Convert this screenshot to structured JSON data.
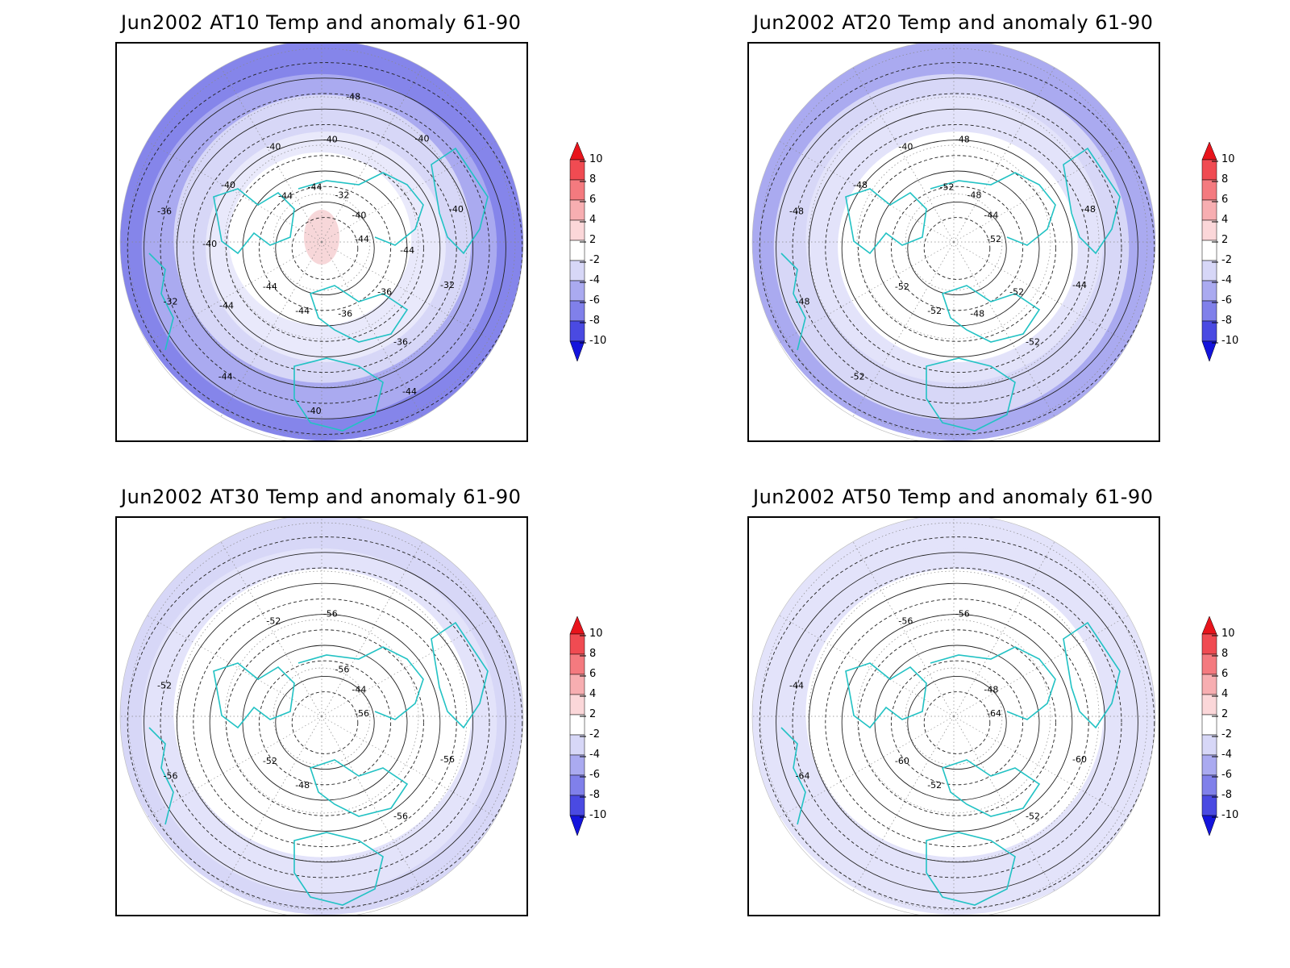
{
  "panels": [
    {
      "id": "at10",
      "title": "Jun2002 AT10 Temp and anomaly 61-90",
      "anomaly_rings": [
        "#ffffff",
        "#ffffff",
        "#ffffff",
        "#e9e9fb",
        "#d7d7f7",
        "#aaaaf0",
        "#8585ea"
      ],
      "center_anomaly": "#f7d7d9",
      "contour_labels": [
        "-44",
        "-44",
        "-40",
        "-36",
        "-36",
        "-40",
        "-44",
        "-40",
        "-32",
        "-32",
        "-32",
        "-36",
        "-40",
        "-40",
        "-44",
        "-44",
        "-36",
        "-40",
        "-40",
        "-40",
        "-44",
        "-44",
        "-44",
        "-48",
        "-44"
      ]
    },
    {
      "id": "at20",
      "title": "Jun2002 AT20 Temp and anomaly 61-90",
      "anomaly_rings": [
        "#ffffff",
        "#ffffff",
        "#ffffff",
        "#ffffff",
        "#e3e3fa",
        "#d7d7f7",
        "#aaaaf0"
      ],
      "center_anomaly": "#ffffff",
      "contour_labels": [
        "-52",
        "-52",
        "-48",
        "-52",
        "-48",
        "-44",
        "-52",
        "-40",
        "-44",
        "-48",
        "-48",
        "-48",
        "-48",
        "-48",
        "-52",
        "-52",
        "-52"
      ]
    },
    {
      "id": "at30",
      "title": "Jun2002 AT30 Temp and anomaly 61-90",
      "anomaly_rings": [
        "#ffffff",
        "#ffffff",
        "#ffffff",
        "#ffffff",
        "#ffffff",
        "#e3e3fa",
        "#d7d7f7"
      ],
      "center_anomaly": "#ffffff",
      "contour_labels": [
        "-56",
        "-52",
        "-56",
        "-56",
        "-52",
        "-44",
        "-48",
        "-52",
        "-56",
        "-56",
        "-56"
      ]
    },
    {
      "id": "at50",
      "title": "Jun2002 AT50 Temp and anomaly 61-90",
      "anomaly_rings": [
        "#ffffff",
        "#ffffff",
        "#ffffff",
        "#ffffff",
        "#ffffff",
        "#e3e3fa",
        "#e3e3fa"
      ],
      "center_anomaly": "#ffffff",
      "contour_labels": [
        "-64",
        "-60",
        "-56",
        "-52",
        "-44",
        "-48",
        "-52",
        "-56",
        "-60",
        "-64"
      ]
    }
  ],
  "colorbar": {
    "labels": [
      "10",
      "8",
      "6",
      "4",
      "2",
      "-2",
      "-4",
      "-6",
      "-8",
      "-10"
    ],
    "colors": [
      "#e8141c",
      "#f04b52",
      "#f47a7f",
      "#f7aeb1",
      "#fbd7d9",
      "#ffffff",
      "#d7d7f7",
      "#aaaaf0",
      "#8080ea",
      "#4a4ae2",
      "#1414dc"
    ]
  }
}
